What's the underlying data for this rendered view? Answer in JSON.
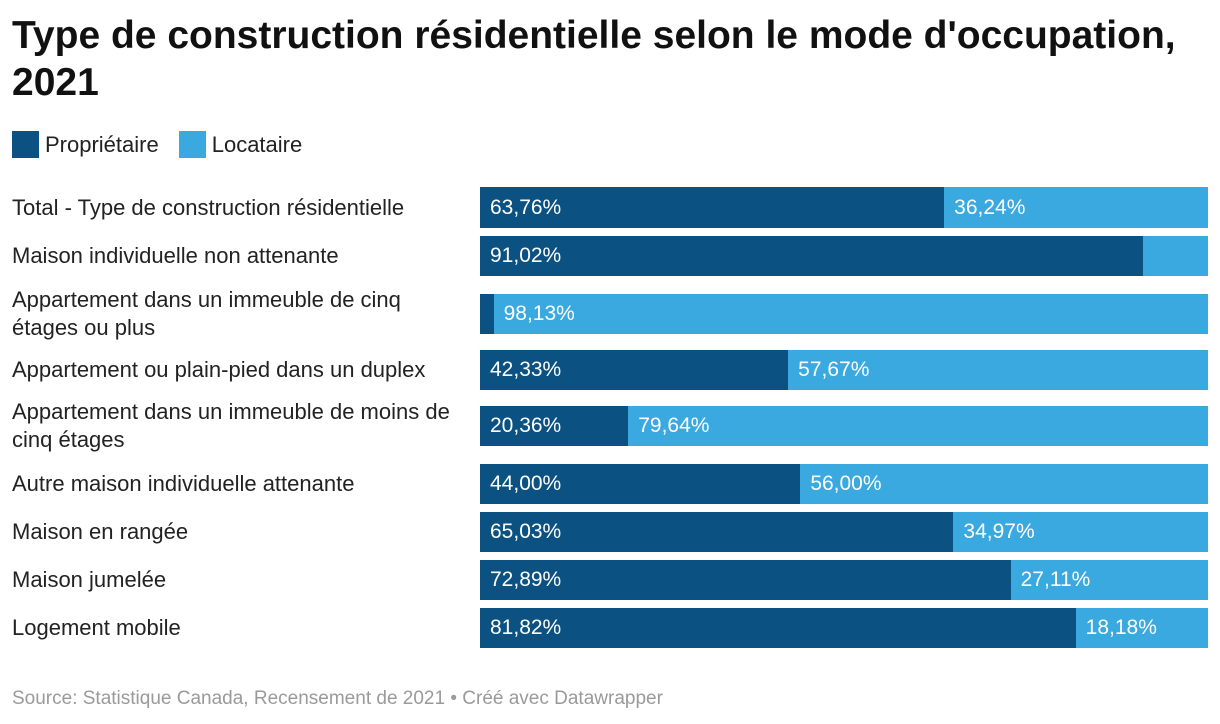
{
  "title": "Type de construction résidentielle selon le mode d'occupation, 2021",
  "footer": "Source: Statistique Canada, Recensement de 2021 • Créé avec Datawrapper",
  "chart_data": {
    "type": "bar",
    "orientation": "horizontal",
    "stacked": true,
    "legend_position": "top-left",
    "categories": [
      "Total - Type de construction résidentielle",
      "Maison individuelle non attenante",
      "Appartement dans un immeuble de cinq étages ou plus",
      "Appartement ou plain-pied dans un duplex",
      "Appartement dans un immeuble de moins de cinq étages",
      "Autre maison individuelle attenante",
      "Maison en rangée",
      "Maison jumelée",
      "Logement mobile"
    ],
    "series": [
      {
        "name": "Propriétaire",
        "color": "#0b5181",
        "values": [
          63.76,
          91.02,
          1.87,
          42.33,
          20.36,
          44.0,
          65.03,
          72.89,
          81.82
        ],
        "labels": [
          "63,76%",
          "91,02%",
          "",
          "42,33%",
          "20,36%",
          "44,00%",
          "65,03%",
          "72,89%",
          "81,82%"
        ]
      },
      {
        "name": "Locataire",
        "color": "#3aa9e0",
        "values": [
          36.24,
          8.98,
          98.13,
          57.67,
          79.64,
          56.0,
          34.97,
          27.11,
          18.18
        ],
        "labels": [
          "36,24%",
          "",
          "98,13%",
          "57,67%",
          "79,64%",
          "56,00%",
          "34,97%",
          "27,11%",
          "18,18%"
        ]
      }
    ],
    "xlim": [
      0,
      100
    ]
  }
}
